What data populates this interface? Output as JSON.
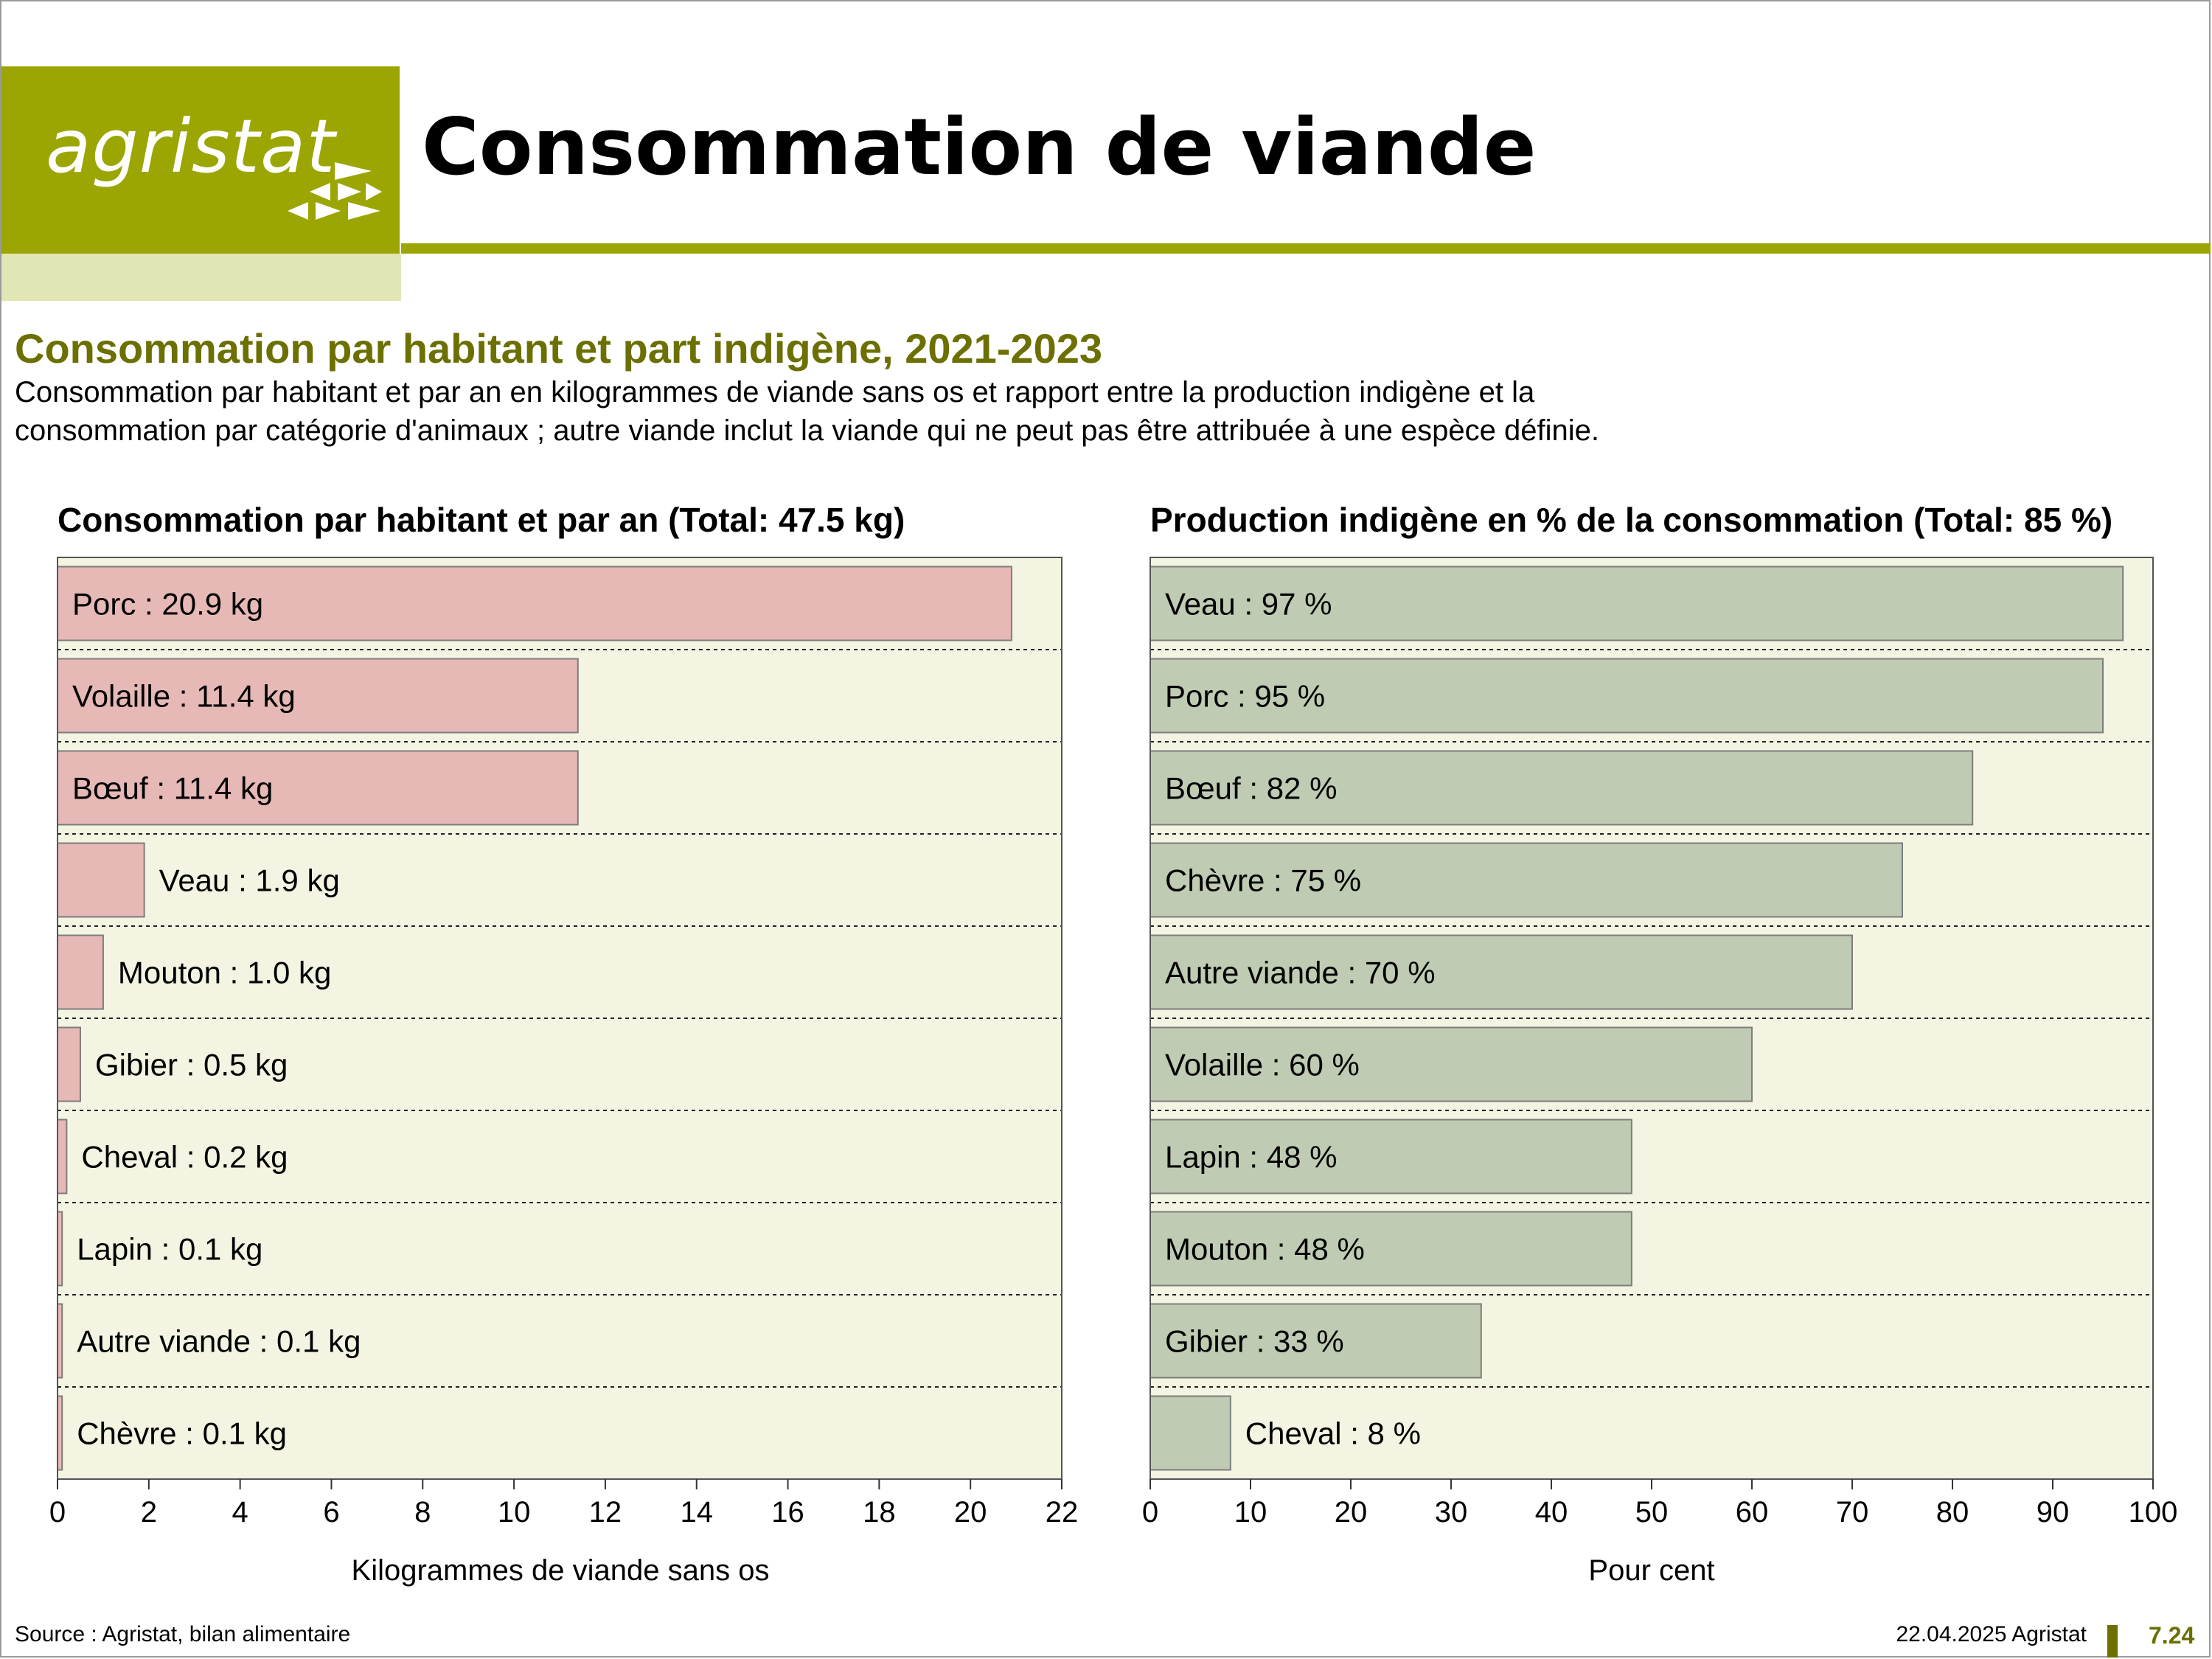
{
  "header": {
    "logo_text": "agristat",
    "title": "Consommation de viande"
  },
  "section": {
    "subtitle": "Consommation par habitant et part indigène, 2021-2023",
    "description_line1": "Consommation par habitant et par an en kilogrammes de viande sans os et rapport entre la production indigène et la",
    "description_line2": "consommation par catégorie d'animaux ; autre viande inclut la viande qui ne peut pas être attribuée à une espèce définie."
  },
  "colors": {
    "brand": "#9ba602",
    "brand_light": "#e2e6b4",
    "brand_dark": "#6b7000",
    "plot_bg": "#f3f4e1",
    "bar_left": "#e6b9b6",
    "bar_right": "#c0cbb3"
  },
  "chart_data": [
    {
      "type": "bar",
      "orientation": "horizontal",
      "title": "Consommation par habitant et par an (Total: 47.5 kg)",
      "xlabel": "Kilogrammes de viande sans os",
      "xlim": [
        0,
        22
      ],
      "xticks": [
        0,
        2,
        4,
        6,
        8,
        10,
        12,
        14,
        16,
        18,
        20,
        22
      ],
      "categories": [
        "Porc",
        "Volaille",
        "Bœuf",
        "Veau",
        "Mouton",
        "Gibier",
        "Cheval",
        "Lapin",
        "Autre viande",
        "Chèvre"
      ],
      "values": [
        20.9,
        11.4,
        11.4,
        1.9,
        1.0,
        0.5,
        0.2,
        0.1,
        0.1,
        0.1
      ],
      "labels": [
        "Porc : 20.9 kg",
        "Volaille : 11.4 kg",
        "Bœuf : 11.4 kg",
        "Veau : 1.9 kg",
        "Mouton : 1.0 kg",
        "Gibier : 0.5 kg",
        "Cheval : 0.2 kg",
        "Lapin : 0.1 kg",
        "Autre viande : 0.1 kg",
        "Chèvre : 0.1 kg"
      ]
    },
    {
      "type": "bar",
      "orientation": "horizontal",
      "title": "Production indigène en % de la consommation (Total: 85 %)",
      "xlabel": "Pour cent",
      "xlim": [
        0,
        100
      ],
      "xticks": [
        0,
        10,
        20,
        30,
        40,
        50,
        60,
        70,
        80,
        90,
        100
      ],
      "categories": [
        "Veau",
        "Porc",
        "Bœuf",
        "Chèvre",
        "Autre viande",
        "Volaille",
        "Lapin",
        "Mouton",
        "Gibier",
        "Cheval"
      ],
      "values": [
        97,
        95,
        82,
        75,
        70,
        60,
        48,
        48,
        33,
        8
      ],
      "labels": [
        "Veau : 97 %",
        "Porc : 95 %",
        "Bœuf : 82 %",
        "Chèvre : 75 %",
        "Autre viande : 70 %",
        "Volaille : 60 %",
        "Lapin : 48 %",
        "Mouton : 48 %",
        "Gibier : 33 %",
        "Cheval : 8 %"
      ]
    }
  ],
  "footer": {
    "source": "Source : Agristat, bilan alimentaire",
    "date": "22.04.2025 Agristat",
    "page": "7.24"
  }
}
